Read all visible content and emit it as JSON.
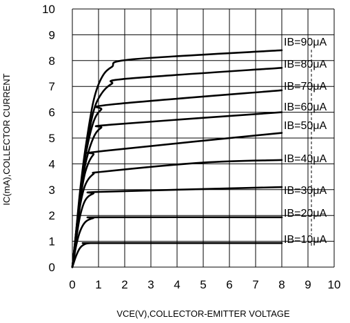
{
  "chart_data": {
    "type": "line",
    "title": "",
    "xlabel": "VCE(V),COLLECTOR-EMITTER VOLTAGE",
    "ylabel": "IC(mA),COLLECTOR CURRENT",
    "xlim": [
      0,
      10
    ],
    "ylim": [
      0,
      10
    ],
    "xticks": [
      "0",
      "1",
      "2",
      "3",
      "4",
      "5",
      "6",
      "7",
      "8",
      "9",
      "10"
    ],
    "yticks": [
      "0",
      "1",
      "2",
      "3",
      "4",
      "5",
      "6",
      "7",
      "8",
      "9",
      "10"
    ],
    "grid": true,
    "series": [
      {
        "name": "IB=10μA",
        "points": [
          [
            0,
            0
          ],
          [
            0.15,
            0.45
          ],
          [
            0.3,
            0.75
          ],
          [
            0.5,
            0.9
          ],
          [
            0.7,
            0.93
          ],
          [
            1,
            0.93
          ],
          [
            8,
            0.93
          ]
        ]
      },
      {
        "name": "IB=20μA",
        "points": [
          [
            0,
            0
          ],
          [
            0.15,
            0.85
          ],
          [
            0.3,
            1.4
          ],
          [
            0.5,
            1.75
          ],
          [
            0.8,
            1.9
          ],
          [
            1.2,
            1.93
          ],
          [
            8,
            1.93
          ]
        ]
      },
      {
        "name": "IB=30μA",
        "points": [
          [
            0,
            0
          ],
          [
            0.15,
            1.1
          ],
          [
            0.3,
            2.0
          ],
          [
            0.5,
            2.6
          ],
          [
            0.8,
            2.85
          ],
          [
            1.2,
            2.92
          ],
          [
            8,
            3.1
          ]
        ]
      },
      {
        "name": "IB=40μA",
        "points": [
          [
            0,
            0
          ],
          [
            0.15,
            1.2
          ],
          [
            0.3,
            2.4
          ],
          [
            0.5,
            3.2
          ],
          [
            0.8,
            3.6
          ],
          [
            1.2,
            3.7
          ],
          [
            5,
            4.05
          ],
          [
            8,
            4.15
          ]
        ]
      },
      {
        "name": "IB=50μA",
        "points": [
          [
            0,
            0
          ],
          [
            0.15,
            1.3
          ],
          [
            0.3,
            2.6
          ],
          [
            0.5,
            3.7
          ],
          [
            0.8,
            4.35
          ],
          [
            1.2,
            4.5
          ],
          [
            8,
            5.2
          ]
        ]
      },
      {
        "name": "IB=60μA",
        "points": [
          [
            0,
            0
          ],
          [
            0.15,
            1.35
          ],
          [
            0.3,
            2.75
          ],
          [
            0.5,
            4.0
          ],
          [
            0.8,
            5.0
          ],
          [
            1.1,
            5.4
          ],
          [
            1.5,
            5.52
          ],
          [
            8,
            6.0
          ]
        ]
      },
      {
        "name": "IB=70μA",
        "points": [
          [
            0,
            0
          ],
          [
            0.15,
            1.4
          ],
          [
            0.3,
            2.85
          ],
          [
            0.5,
            4.3
          ],
          [
            0.8,
            5.6
          ],
          [
            1.1,
            6.1
          ],
          [
            1.5,
            6.3
          ],
          [
            8,
            6.85
          ]
        ]
      },
      {
        "name": "IB=80μA",
        "points": [
          [
            0,
            0
          ],
          [
            0.15,
            1.42
          ],
          [
            0.3,
            2.9
          ],
          [
            0.5,
            4.4
          ],
          [
            0.8,
            6.0
          ],
          [
            1.1,
            6.7
          ],
          [
            1.5,
            7.1
          ],
          [
            2.1,
            7.3
          ],
          [
            8,
            7.72
          ]
        ]
      },
      {
        "name": "IB=90μA",
        "points": [
          [
            0,
            0
          ],
          [
            0.15,
            1.45
          ],
          [
            0.3,
            3.0
          ],
          [
            0.5,
            4.6
          ],
          [
            0.8,
            6.4
          ],
          [
            1.1,
            7.3
          ],
          [
            1.5,
            7.75
          ],
          [
            2.3,
            8.05
          ],
          [
            8,
            8.4
          ]
        ]
      }
    ]
  }
}
